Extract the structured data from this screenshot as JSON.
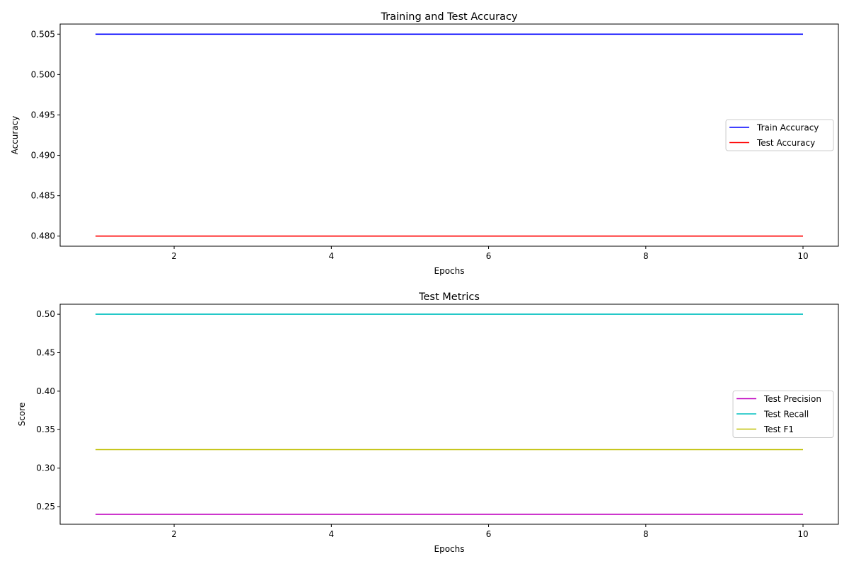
{
  "chart_data": [
    {
      "type": "line",
      "title": "Training and Test Accuracy",
      "xlabel": "Epochs",
      "ylabel": "Accuracy",
      "x": [
        1,
        2,
        3,
        4,
        5,
        6,
        7,
        8,
        9,
        10
      ],
      "xlim": [
        0.55,
        10.45
      ],
      "ylim": [
        0.47875,
        0.50625
      ],
      "xticks": [
        2,
        4,
        6,
        8,
        10
      ],
      "xtick_labels": [
        "2",
        "4",
        "6",
        "8",
        "10"
      ],
      "yticks": [
        0.48,
        0.485,
        0.49,
        0.495,
        0.5,
        0.505
      ],
      "ytick_labels": [
        "0.480",
        "0.485",
        "0.490",
        "0.495",
        "0.500",
        "0.505"
      ],
      "grid": false,
      "legend_position": "center-right",
      "series": [
        {
          "name": "Train Accuracy",
          "color": "#0000ff",
          "values": [
            0.505,
            0.505,
            0.505,
            0.505,
            0.505,
            0.505,
            0.505,
            0.505,
            0.505,
            0.505
          ]
        },
        {
          "name": "Test Accuracy",
          "color": "#ff0000",
          "values": [
            0.48,
            0.48,
            0.48,
            0.48,
            0.48,
            0.48,
            0.48,
            0.48,
            0.48,
            0.48
          ]
        }
      ]
    },
    {
      "type": "line",
      "title": "Test Metrics",
      "xlabel": "Epochs",
      "ylabel": "Score",
      "x": [
        1,
        2,
        3,
        4,
        5,
        6,
        7,
        8,
        9,
        10
      ],
      "xlim": [
        0.55,
        10.45
      ],
      "ylim": [
        0.227,
        0.513
      ],
      "xticks": [
        2,
        4,
        6,
        8,
        10
      ],
      "xtick_labels": [
        "2",
        "4",
        "6",
        "8",
        "10"
      ],
      "yticks": [
        0.25,
        0.3,
        0.35,
        0.4,
        0.45,
        0.5
      ],
      "ytick_labels": [
        "0.25",
        "0.30",
        "0.35",
        "0.40",
        "0.45",
        "0.50"
      ],
      "grid": false,
      "legend_position": "center-right",
      "series": [
        {
          "name": "Test Precision",
          "color": "#bf00bf",
          "values": [
            0.24,
            0.24,
            0.24,
            0.24,
            0.24,
            0.24,
            0.24,
            0.24,
            0.24,
            0.24
          ]
        },
        {
          "name": "Test Recall",
          "color": "#00bfbf",
          "values": [
            0.5,
            0.5,
            0.5,
            0.5,
            0.5,
            0.5,
            0.5,
            0.5,
            0.5,
            0.5
          ]
        },
        {
          "name": "Test F1",
          "color": "#bfbf00",
          "values": [
            0.324,
            0.324,
            0.324,
            0.324,
            0.324,
            0.324,
            0.324,
            0.324,
            0.324,
            0.324
          ]
        }
      ]
    }
  ]
}
